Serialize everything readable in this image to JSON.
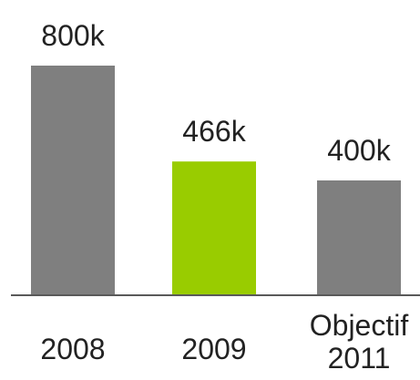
{
  "chart_data": {
    "type": "bar",
    "categories": [
      [
        "2008"
      ],
      [
        "2009"
      ],
      [
        "Objectif",
        "2011"
      ]
    ],
    "values": [
      800,
      466,
      400
    ],
    "value_labels": [
      "800k",
      "466k",
      "400k"
    ],
    "unit": "k",
    "ylim": [
      0,
      800
    ],
    "grid": false,
    "legend": "none",
    "colors": [
      "#7f7f7f",
      "#99cc00",
      "#7f7f7f"
    ],
    "axis_color": "#595959"
  }
}
